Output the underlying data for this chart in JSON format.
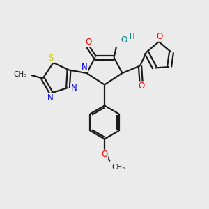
{
  "background_color": "#ebebeb",
  "figure_size": [
    3.0,
    3.0
  ],
  "dpi": 100,
  "bond_color": "#1a1a1a",
  "bond_lw": 1.6,
  "atom_colors": {
    "N": "#0000ee",
    "O_red": "#ff0000",
    "O_teal": "#008080",
    "S": "#cccc00",
    "C": "#1a1a1a"
  },
  "font_size_atom": 8.5,
  "xlim": [
    0,
    10
  ],
  "ylim": [
    0,
    10
  ]
}
